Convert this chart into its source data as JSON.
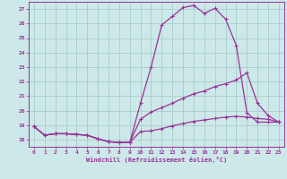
{
  "xlabel": "Windchill (Refroidissement éolien,°C)",
  "bg_color": "#cce8e8",
  "grid_color": "#aacccc",
  "line_color": "#993399",
  "xlim": [
    -0.5,
    23.5
  ],
  "ylim": [
    17.5,
    27.5
  ],
  "xticks": [
    0,
    1,
    2,
    3,
    4,
    5,
    6,
    7,
    8,
    9,
    10,
    11,
    12,
    13,
    14,
    15,
    16,
    17,
    18,
    19,
    20,
    21,
    22,
    23
  ],
  "yticks": [
    18,
    19,
    20,
    21,
    22,
    23,
    24,
    25,
    26,
    27
  ],
  "curve1_x": [
    0,
    1,
    2,
    3,
    4,
    5,
    6,
    7,
    8,
    9,
    10,
    11,
    12,
    13,
    14,
    15,
    16,
    17,
    18,
    19,
    20,
    21,
    22,
    23
  ],
  "curve1_y": [
    18.9,
    18.3,
    18.4,
    18.4,
    18.35,
    18.3,
    18.05,
    17.85,
    17.8,
    17.8,
    20.5,
    23.0,
    25.9,
    26.5,
    27.1,
    27.25,
    26.7,
    27.05,
    26.3,
    24.5,
    19.85,
    19.2,
    19.2,
    19.2
  ],
  "curve2_x": [
    0,
    1,
    2,
    3,
    4,
    5,
    6,
    7,
    8,
    9,
    10,
    11,
    12,
    13,
    14,
    15,
    16,
    17,
    18,
    19,
    20,
    21,
    22,
    23
  ],
  "curve2_y": [
    18.9,
    18.3,
    18.4,
    18.4,
    18.35,
    18.3,
    18.05,
    17.85,
    17.8,
    17.8,
    19.4,
    19.9,
    20.2,
    20.5,
    20.85,
    21.15,
    21.35,
    21.65,
    21.85,
    22.1,
    22.6,
    20.5,
    19.65,
    19.2
  ],
  "curve3_x": [
    0,
    1,
    2,
    3,
    4,
    5,
    6,
    7,
    8,
    9,
    10,
    11,
    12,
    13,
    14,
    15,
    16,
    17,
    18,
    19,
    20,
    21,
    22,
    23
  ],
  "curve3_y": [
    18.9,
    18.3,
    18.4,
    18.4,
    18.35,
    18.3,
    18.05,
    17.85,
    17.8,
    17.8,
    18.55,
    18.6,
    18.75,
    18.95,
    19.1,
    19.25,
    19.35,
    19.45,
    19.55,
    19.6,
    19.55,
    19.45,
    19.4,
    19.2
  ]
}
